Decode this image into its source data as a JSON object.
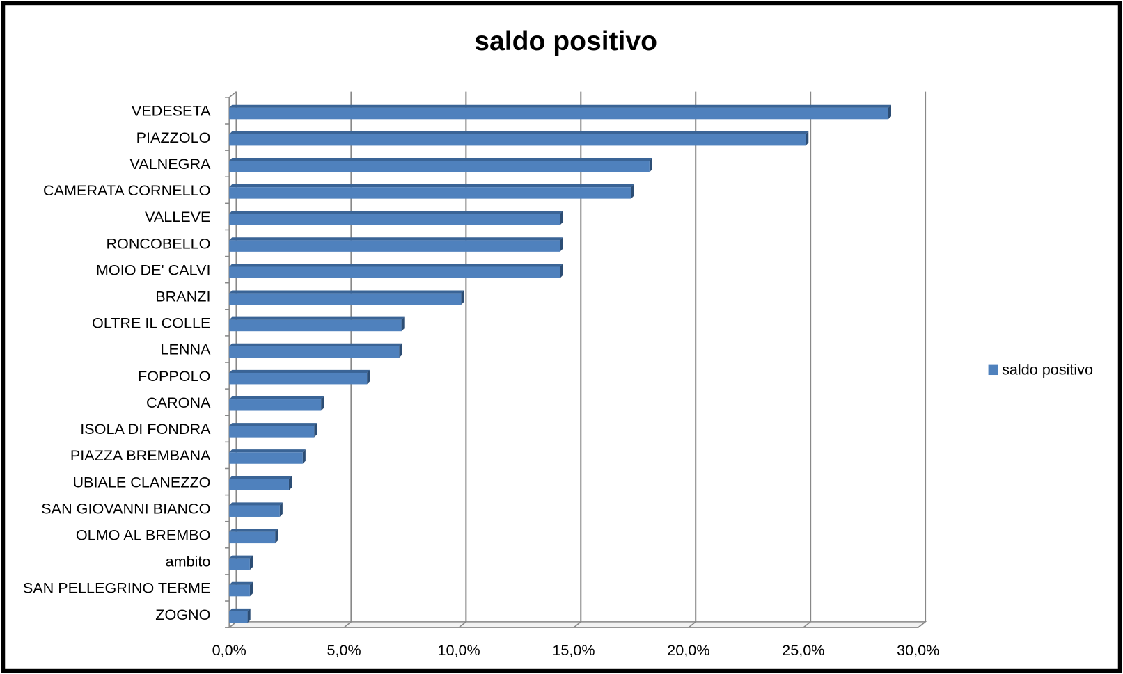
{
  "chart_data": {
    "type": "bar",
    "orientation": "horizontal",
    "title": "saldo positivo",
    "categories": [
      "VEDESETA",
      "PIAZZOLO",
      "VALNEGRA",
      "CAMERATA CORNELLO",
      "VALLEVE",
      "RONCOBELLO",
      "MOIO DE' CALVI",
      "BRANZI",
      "OLTRE IL COLLE",
      "LENNA",
      "FOPPOLO",
      "CARONA",
      "ISOLA DI FONDRA",
      "PIAZZA BREMBANA",
      "UBIALE CLANEZZO",
      "SAN GIOVANNI BIANCO",
      "OLMO AL BREMBO",
      "ambito",
      "SAN PELLEGRINO TERME",
      "ZOGNO"
    ],
    "series": [
      {
        "name": "saldo positivo",
        "color": "#4f81bd",
        "values": [
          28.7,
          25.1,
          18.3,
          17.5,
          14.4,
          14.4,
          14.4,
          10.1,
          7.5,
          7.4,
          6.0,
          4.0,
          3.7,
          3.2,
          2.6,
          2.2,
          2.0,
          0.9,
          0.9,
          0.8
        ]
      }
    ],
    "xlim": [
      0,
      30
    ],
    "xticks": [
      {
        "value": 0,
        "label": "0,0%"
      },
      {
        "value": 5,
        "label": "5,0%"
      },
      {
        "value": 10,
        "label": "10,0%"
      },
      {
        "value": 15,
        "label": "15,0%"
      },
      {
        "value": 20,
        "label": "20,0%"
      },
      {
        "value": 25,
        "label": "25,0%"
      },
      {
        "value": 30,
        "label": "30,0%"
      }
    ],
    "grid": true,
    "legend": "right"
  }
}
